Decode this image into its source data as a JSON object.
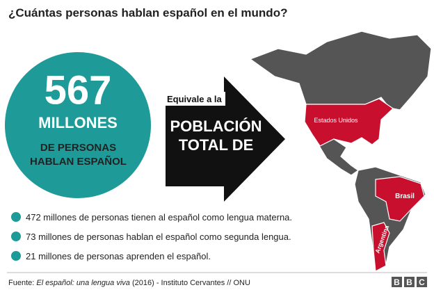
{
  "header": {
    "title": "¿Cuántas personas hablan español en el mundo?"
  },
  "circle": {
    "number": "567",
    "unit": "MILLONES",
    "caption": "DE PERSONAS HABLAN ESPAÑOL"
  },
  "arrow": {
    "intro": "Equivale a la",
    "text": "POBLACIÓN TOTAL DE"
  },
  "map": {
    "labels": [
      "Estados Unidos",
      "Brasil",
      "Argentina"
    ]
  },
  "bullets": [
    "472 millones de personas tienen al español como lengua materna.",
    "73 millones de personas hablan el español como segunda lengua.",
    "21 millones de personas aprenden el español."
  ],
  "footer": {
    "prefix": "Fuente: ",
    "source_title": "El español: una lengua viva",
    "suffix": " (2016) - Instituto Cervantes // ONU",
    "logo": [
      "B",
      "B",
      "C"
    ]
  }
}
